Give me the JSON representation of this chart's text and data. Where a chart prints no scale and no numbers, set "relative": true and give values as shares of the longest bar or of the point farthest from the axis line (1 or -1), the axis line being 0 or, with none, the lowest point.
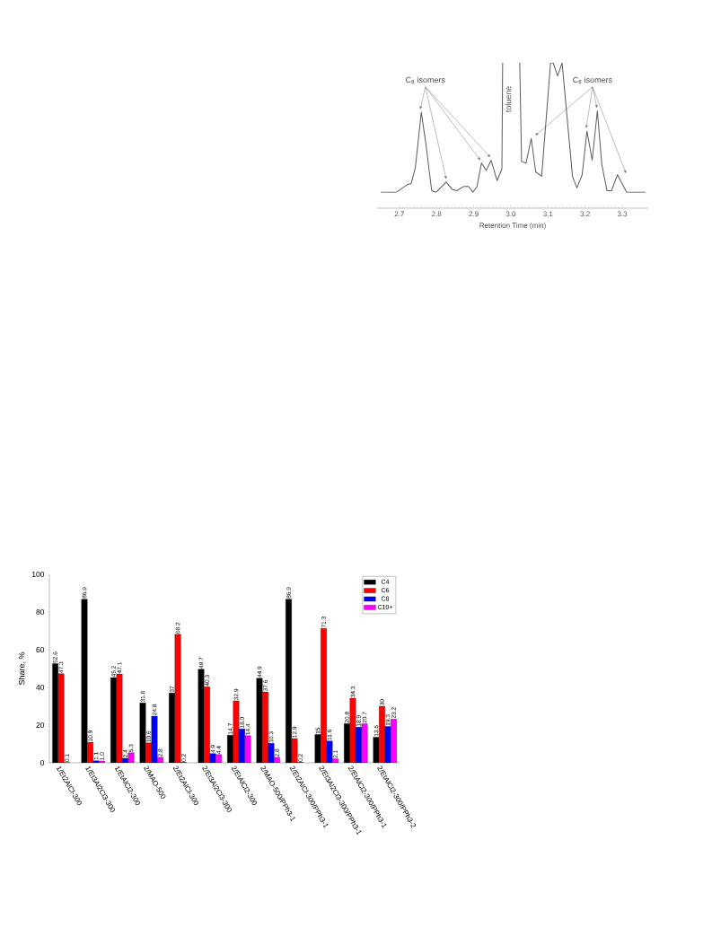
{
  "chart_data": [
    {
      "type": "line",
      "relative": true,
      "color": "#5a5a5a",
      "xlabel": "Retention Time (min)",
      "xlim": [
        2.64,
        3.37
      ],
      "xticks": [
        2.7,
        2.8,
        2.9,
        {
          "value": 3.0,
          "label": "3.0"
        },
        3.1,
        3.2,
        3.3
      ],
      "x": [
        2.65,
        2.692,
        2.72,
        2.732,
        2.743,
        2.759,
        2.771,
        2.787,
        2.799,
        2.826,
        2.842,
        2.854,
        2.874,
        2.886,
        2.898,
        2.909,
        2.921,
        2.934,
        2.947,
        2.963,
        2.976,
        2.978,
        3.0,
        3.024,
        3.029,
        3.041,
        3.055,
        3.067,
        3.083,
        3.107,
        3.114,
        3.126,
        3.138,
        3.166,
        3.178,
        3.192,
        3.205,
        3.219,
        3.233,
        3.245,
        3.259,
        3.271,
        3.287,
        3.312,
        3.363
      ],
      "values": [
        0.11,
        0.11,
        0.16,
        0.17,
        0.28,
        0.66,
        0.45,
        0.12,
        0.11,
        0.18,
        0.13,
        0.12,
        0.15,
        0.15,
        0.11,
        0.15,
        0.31,
        0.26,
        0.33,
        0.19,
        0.27,
        1,
        null,
        1,
        0.32,
        0.31,
        0.48,
        0.25,
        0.22,
        1,
        1,
        0.91,
        1,
        0.22,
        0.14,
        0.23,
        0.53,
        0.33,
        0.67,
        0.3,
        0.12,
        0.12,
        0.23,
        0.11,
        0.11
      ],
      "annotations": [
        "C$_{8}$ isomers",
        "toluene",
        "C$_{8}$ isomers"
      ]
    },
    {
      "type": "bar",
      "ylabel": "Share, %",
      "ylim": [
        0,
        100
      ],
      "yticks": [
        0,
        20,
        40,
        60,
        80,
        100
      ],
      "legend": "top right",
      "categories": [
        "1/Et2AlCl-300",
        "1/Et3Al2Cl3-300",
        "1/EtAlCl2-300",
        "2/MAO-500",
        "2/Et2AlCl-300",
        "2/Et3Al2Cl3-300",
        "2/EtAlCl2-300",
        "2/MAO-500/PPh3-1",
        "2/Et2AlCl-300/PPh3-1",
        "2/Et3Al2Cl3-300/PPh3-1",
        "2/EtAlCl2-300/PPh3-1",
        "2/EtAlCl2-300/PPh3-2"
      ],
      "series": [
        {
          "name": "C4",
          "color": "#000000",
          "values": [
            52.6,
            86.9,
            45.2,
            31.8,
            37,
            49.7,
            14.7,
            44.9,
            86.9,
            15,
            20.8,
            13.6
          ],
          "value_labels": [
            "52.6",
            "86.9",
            "45.2",
            "31.8",
            "37",
            "49.7",
            "14.7",
            "44.9",
            "86.9",
            "15",
            "20.8",
            "13.6"
          ]
        },
        {
          "name": "C6",
          "color": "#ff0000",
          "values": [
            47.3,
            10.9,
            47.1,
            10.6,
            68.2,
            40.3,
            32.9,
            37.6,
            12.9,
            71.3,
            34.3,
            30
          ],
          "value_labels": [
            "47.3",
            "10.9",
            "47.1",
            "10.6",
            "68.2",
            "40.3",
            "32.9",
            "37.6",
            "12.9",
            "71.3",
            "34.3",
            "30"
          ]
        },
        {
          "name": "C8",
          "color": "#0000ff",
          "values": [
            0.1,
            1.1,
            2.4,
            24.8,
            0.2,
            4.9,
            18.0,
            10.3,
            0.2,
            11.6,
            18.9,
            19.3
          ],
          "value_labels": [
            "0.1",
            "1.1",
            "2.4",
            "24.8",
            "0.2",
            "4.9",
            "18.0",
            "10.3",
            "0.2",
            "11.6",
            "18.9",
            "19.3"
          ]
        },
        {
          "name": "C10+",
          "color": "#ff00ff",
          "values": [
            null,
            1.0,
            5.3,
            2.8,
            null,
            4.4,
            14.4,
            2.8,
            null,
            2.1,
            20.7,
            23.2
          ],
          "value_labels": [
            null,
            "1.0",
            "5.3",
            "2.8",
            null,
            "4.4",
            "14.4",
            "2.8",
            null,
            "2.1",
            "20.7",
            "23.2"
          ]
        }
      ]
    }
  ]
}
